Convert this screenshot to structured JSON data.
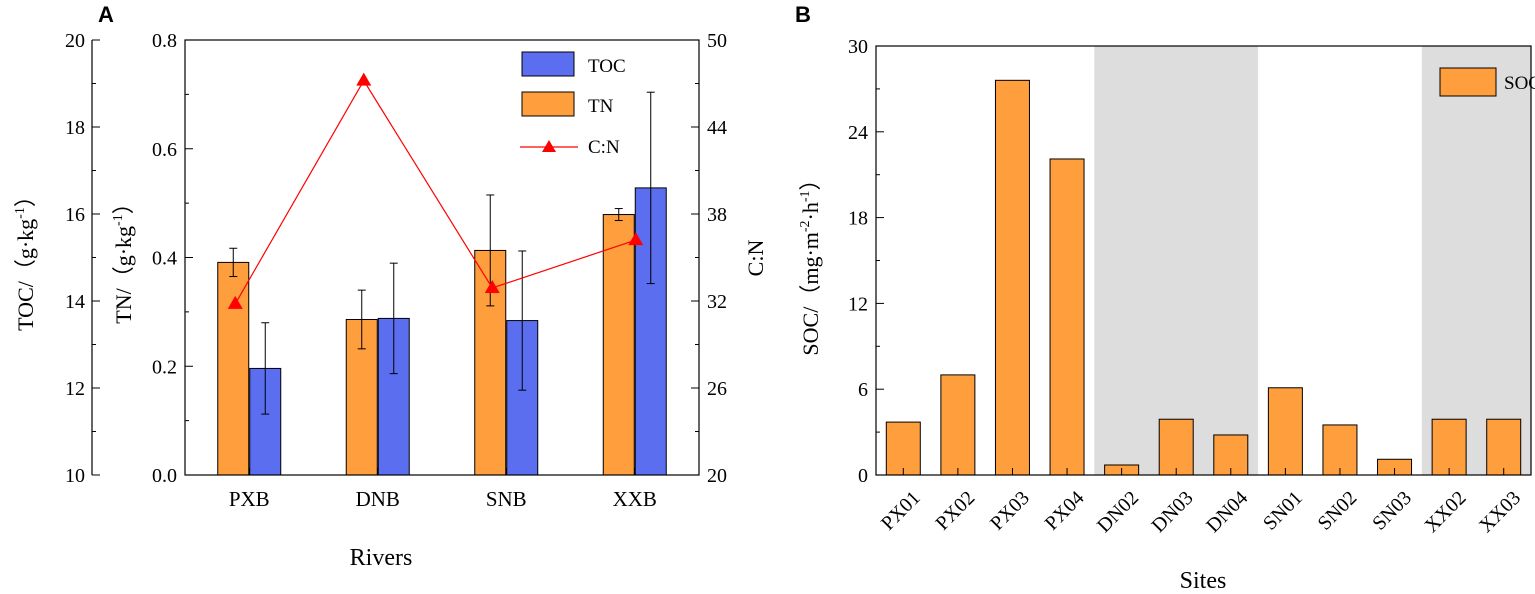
{
  "chart_data": [
    {
      "panel_label": "A",
      "type": "bar",
      "categories": [
        "PXB",
        "DNB",
        "SNB",
        "XXB"
      ],
      "xlabel": "Rivers",
      "y_left_outer": {
        "label_prefix": "TOC/",
        "label_unit": "（g·kg",
        "label_exp": "-1",
        "label_close": "）",
        "lim": [
          10,
          20
        ],
        "ticks": [
          "10",
          "12",
          "14",
          "16",
          "18",
          "20"
        ]
      },
      "y_left_inner": {
        "label_prefix": "TN/",
        "label_unit": "（g·kg",
        "label_exp": "-1",
        "label_close": "）",
        "lim": [
          0.0,
          0.8
        ],
        "ticks": [
          "0.0",
          "0.2",
          "0.4",
          "0.6",
          "0.8"
        ]
      },
      "y_right": {
        "label": "C:N",
        "lim": [
          20,
          50
        ],
        "ticks": [
          "20",
          "26",
          "32",
          "38",
          "44",
          "50"
        ]
      },
      "series": [
        {
          "name": "TN",
          "axis": "y_left_inner",
          "color": "#FF9E3D",
          "values": [
            0.391,
            0.286,
            0.413,
            0.479
          ],
          "errors": [
            0.026,
            0.054,
            0.102,
            0.011
          ]
        },
        {
          "name": "TOC",
          "axis": "y_left_outer",
          "color": "#5B6EF0",
          "values": [
            12.45,
            13.6,
            13.55,
            16.6
          ],
          "errors": [
            1.05,
            1.27,
            1.6,
            2.2
          ]
        },
        {
          "name": "C:N",
          "axis": "y_right",
          "type": "line",
          "color": "#FF0000",
          "marker": "triangle",
          "values": [
            31.8,
            47.2,
            32.9,
            36.2
          ]
        }
      ],
      "legend": {
        "placement": "top-right",
        "entries": [
          "TOC",
          "TN",
          "C:N"
        ]
      }
    },
    {
      "panel_label": "B",
      "type": "bar",
      "categories": [
        "PX01",
        "PX02",
        "PX03",
        "PX04",
        "DN02",
        "DN03",
        "DN04",
        "SN01",
        "SN02",
        "SN03",
        "XX02",
        "XX03"
      ],
      "xlabel": "Sites",
      "ylabel_prefix": "SOC/",
      "ylabel_unit": "（mg·m",
      "ylabel_exp1": "-2",
      "ylabel_mid": "·h",
      "ylabel_exp2": "-1",
      "ylabel_close": "）",
      "ylim": [
        0,
        30
      ],
      "ticks": [
        "0",
        "6",
        "12",
        "18",
        "24",
        "30"
      ],
      "series": [
        {
          "name": "SOC",
          "color": "#FF9E3D",
          "values": [
            3.7,
            7.0,
            27.6,
            22.1,
            0.7,
            3.9,
            2.8,
            6.1,
            3.5,
            1.1,
            3.9,
            3.9
          ]
        }
      ],
      "shaded_groups": [
        "DN",
        "XX"
      ],
      "legend": {
        "placement": "top-right",
        "entries": [
          "SOC"
        ]
      }
    }
  ],
  "colors": {
    "orange": "#FF9E3D",
    "blue": "#5B6EF0",
    "red": "#FF0000",
    "shade": "#DDDDDD",
    "axis": "#000000"
  }
}
